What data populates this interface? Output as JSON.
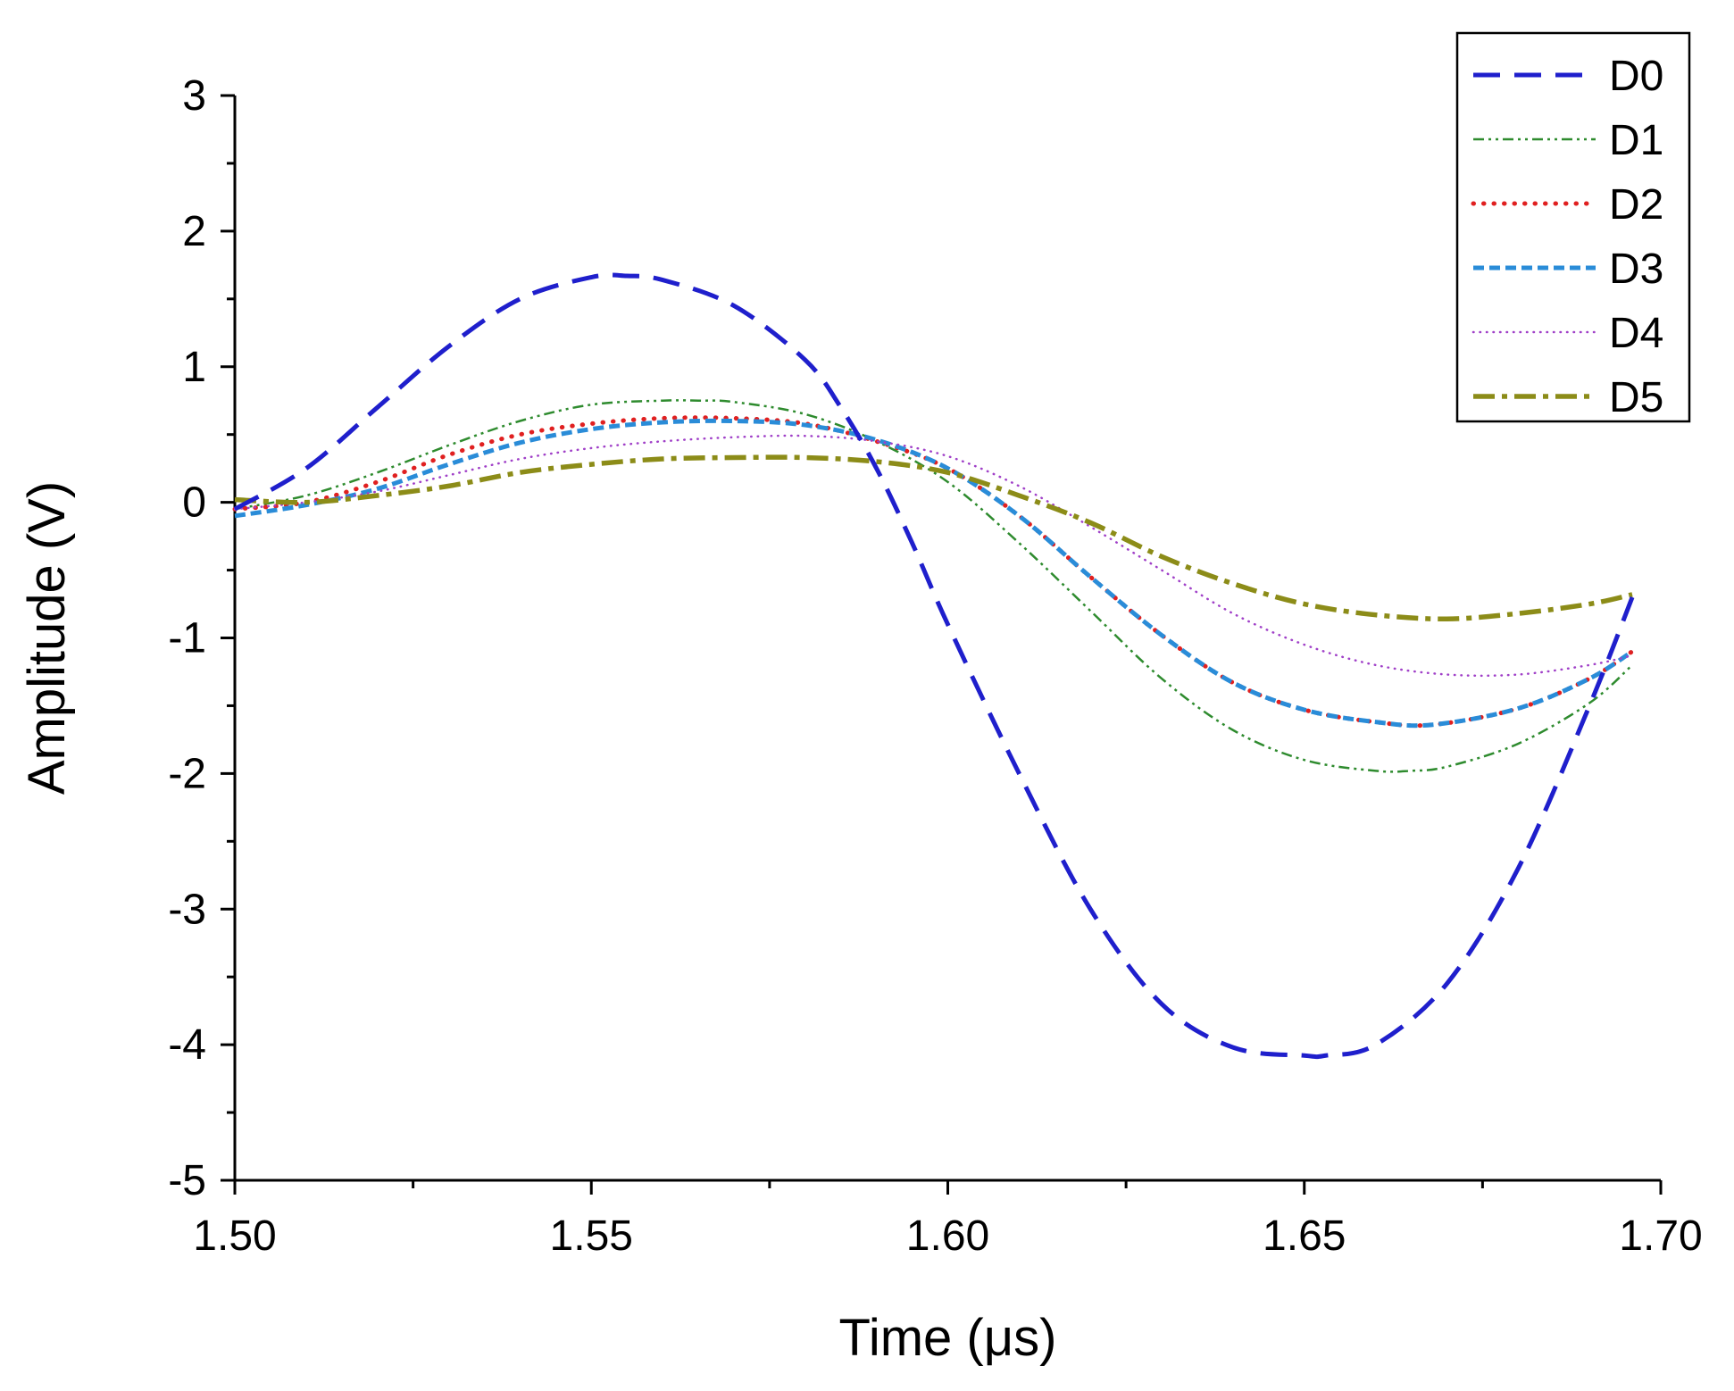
{
  "chart_data": {
    "type": "line",
    "title": "",
    "xlabel": "Time (μs)",
    "ylabel": "Amplitude (V)",
    "xlim": [
      1.5,
      1.7
    ],
    "ylim": [
      -5,
      3
    ],
    "xticks": [
      1.5,
      1.55,
      1.6,
      1.65,
      1.7
    ],
    "xtick_labels": [
      "1.50",
      "1.55",
      "1.60",
      "1.65",
      "1.70"
    ],
    "yticks": [
      -5,
      -4,
      -3,
      -2,
      -1,
      0,
      1,
      2,
      3
    ],
    "ytick_labels": [
      "-5",
      "-4",
      "-3",
      "-2",
      "-1",
      "0",
      "1",
      "2",
      "3"
    ],
    "grid": false,
    "legend_position": "top-right",
    "series": [
      {
        "name": "D0",
        "color": "#1f1fcc",
        "style": "long-dash",
        "x": [
          1.5,
          1.51,
          1.52,
          1.53,
          1.54,
          1.55,
          1.555,
          1.56,
          1.57,
          1.58,
          1.585,
          1.59,
          1.595,
          1.6,
          1.61,
          1.62,
          1.63,
          1.64,
          1.65,
          1.653,
          1.66,
          1.67,
          1.68,
          1.69,
          1.696
        ],
        "y": [
          -0.05,
          0.25,
          0.7,
          1.15,
          1.5,
          1.66,
          1.67,
          1.64,
          1.45,
          1.05,
          0.7,
          0.25,
          -0.3,
          -0.9,
          -2.0,
          -3.0,
          -3.7,
          -4.02,
          -4.08,
          -4.08,
          -4.0,
          -3.55,
          -2.7,
          -1.5,
          -0.7
        ]
      },
      {
        "name": "D1",
        "color": "#2e8b2e",
        "style": "dash-dot-dot",
        "x": [
          1.5,
          1.51,
          1.52,
          1.53,
          1.54,
          1.55,
          1.56,
          1.565,
          1.57,
          1.58,
          1.59,
          1.6,
          1.61,
          1.62,
          1.63,
          1.64,
          1.65,
          1.66,
          1.665,
          1.67,
          1.68,
          1.69,
          1.696
        ],
        "y": [
          -0.05,
          0.05,
          0.22,
          0.42,
          0.6,
          0.72,
          0.75,
          0.75,
          0.74,
          0.65,
          0.45,
          0.15,
          -0.3,
          -0.8,
          -1.3,
          -1.68,
          -1.9,
          -1.98,
          -1.98,
          -1.95,
          -1.78,
          -1.48,
          -1.2
        ]
      },
      {
        "name": "D2",
        "color": "#e02020",
        "style": "dot",
        "x": [
          1.5,
          1.51,
          1.52,
          1.53,
          1.54,
          1.55,
          1.56,
          1.57,
          1.58,
          1.59,
          1.6,
          1.61,
          1.62,
          1.63,
          1.64,
          1.65,
          1.66,
          1.668,
          1.68,
          1.69,
          1.696
        ],
        "y": [
          -0.05,
          0.0,
          0.15,
          0.35,
          0.5,
          0.58,
          0.62,
          0.62,
          0.58,
          0.45,
          0.25,
          -0.1,
          -0.55,
          -0.98,
          -1.33,
          -1.53,
          -1.62,
          -1.64,
          -1.52,
          -1.3,
          -1.1
        ]
      },
      {
        "name": "D3",
        "color": "#2a8cd8",
        "style": "short-dash",
        "x": [
          1.5,
          1.51,
          1.52,
          1.53,
          1.54,
          1.55,
          1.56,
          1.57,
          1.58,
          1.59,
          1.6,
          1.61,
          1.62,
          1.63,
          1.64,
          1.65,
          1.66,
          1.668,
          1.68,
          1.69,
          1.696
        ],
        "y": [
          -0.1,
          -0.02,
          0.1,
          0.28,
          0.44,
          0.54,
          0.59,
          0.6,
          0.57,
          0.46,
          0.25,
          -0.1,
          -0.55,
          -0.98,
          -1.33,
          -1.53,
          -1.62,
          -1.64,
          -1.52,
          -1.3,
          -1.1
        ]
      },
      {
        "name": "D4",
        "color": "#a040c8",
        "style": "fine-dot",
        "x": [
          1.5,
          1.51,
          1.52,
          1.53,
          1.54,
          1.55,
          1.56,
          1.57,
          1.58,
          1.59,
          1.6,
          1.61,
          1.62,
          1.63,
          1.64,
          1.65,
          1.66,
          1.67,
          1.68,
          1.69,
          1.696
        ],
        "y": [
          -0.05,
          0.0,
          0.08,
          0.2,
          0.32,
          0.4,
          0.45,
          0.48,
          0.49,
          0.45,
          0.34,
          0.12,
          -0.18,
          -0.5,
          -0.82,
          -1.05,
          -1.2,
          -1.27,
          -1.27,
          -1.2,
          -1.13
        ]
      },
      {
        "name": "D5",
        "color": "#8c8c18",
        "style": "dash-dot",
        "x": [
          1.5,
          1.51,
          1.52,
          1.53,
          1.54,
          1.55,
          1.56,
          1.57,
          1.58,
          1.59,
          1.6,
          1.61,
          1.62,
          1.63,
          1.64,
          1.65,
          1.66,
          1.67,
          1.68,
          1.69,
          1.696
        ],
        "y": [
          0.02,
          0.0,
          0.05,
          0.12,
          0.22,
          0.28,
          0.32,
          0.33,
          0.33,
          0.3,
          0.22,
          0.05,
          -0.15,
          -0.4,
          -0.6,
          -0.75,
          -0.83,
          -0.86,
          -0.82,
          -0.75,
          -0.68
        ]
      }
    ]
  }
}
